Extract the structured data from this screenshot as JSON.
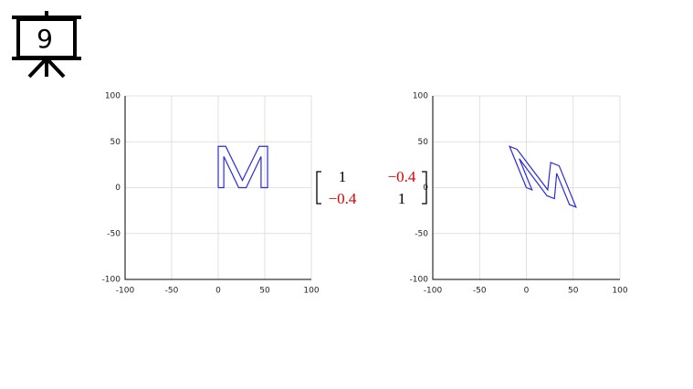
{
  "slide_number": "9",
  "matrix": [
    [
      "1",
      "−0.4"
    ],
    [
      "−0.4",
      "1"
    ]
  ],
  "chart_data": [
    {
      "type": "line",
      "x": [
        0,
        0,
        8,
        26,
        44,
        53,
        53,
        46,
        46,
        30,
        22,
        6,
        6,
        0
      ],
      "series": [
        {
          "color": "#2b2bdc",
          "values": [
            0,
            45,
            45,
            8,
            45,
            45,
            0,
            0,
            34,
            0,
            0,
            34,
            0,
            0
          ]
        }
      ],
      "xlim": [
        -100,
        100
      ],
      "ylim": [
        -100,
        100
      ],
      "xticks": [
        -100,
        -50,
        0,
        50,
        100
      ],
      "yticks": [
        -100,
        -50,
        0,
        50,
        100
      ],
      "grid": true
    },
    {
      "type": "line",
      "x": [
        0,
        -18,
        -10,
        22.8,
        26,
        35,
        53,
        46,
        32.4,
        30,
        22,
        -7.6,
        6,
        0
      ],
      "series": [
        {
          "color": "#2b2bdc",
          "values": [
            0,
            45,
            41.8,
            -2.4,
            27.4,
            23.8,
            -21.2,
            -18.4,
            15.6,
            -12,
            -8.8,
            31.6,
            -2.4,
            0
          ]
        }
      ],
      "xlim": [
        -100,
        100
      ],
      "ylim": [
        -100,
        100
      ],
      "xticks": [
        -100,
        -50,
        0,
        50,
        100
      ],
      "yticks": [
        -100,
        -50,
        0,
        50,
        100
      ],
      "grid": true
    }
  ]
}
